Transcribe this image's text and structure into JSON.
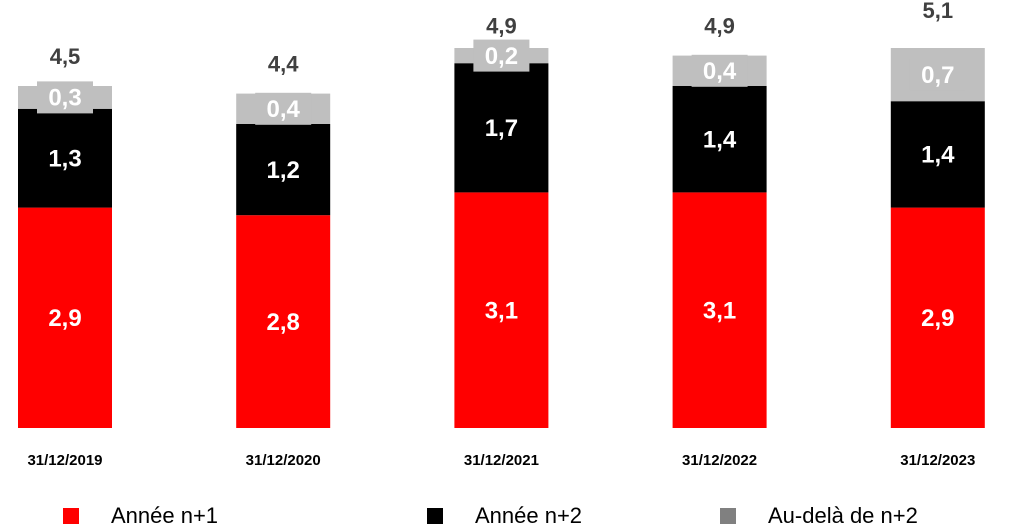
{
  "chart_data": {
    "type": "stacked_bar",
    "categories": [
      "31/12/2019",
      "31/12/2020",
      "31/12/2021",
      "31/12/2022",
      "31/12/2023"
    ],
    "series": [
      {
        "name": "Année n+1",
        "color": "#ff0000",
        "values": [
          2.9,
          2.8,
          3.1,
          3.1,
          2.9
        ],
        "value_labels": [
          "2,9",
          "2,8",
          "3,1",
          "3,1",
          "2,9"
        ]
      },
      {
        "name": "Année n+2",
        "color": "#000000",
        "values": [
          1.3,
          1.2,
          1.7,
          1.4,
          1.4
        ],
        "value_labels": [
          "1,3",
          "1,2",
          "1,7",
          "1,4",
          "1,4"
        ]
      },
      {
        "name": "Au-delà de n+2",
        "color": "#bfbfbf",
        "values": [
          0.3,
          0.4,
          0.2,
          0.4,
          0.7
        ],
        "value_labels": [
          "0,3",
          "0,4",
          "0,2",
          "0,4",
          "0,7"
        ]
      }
    ],
    "totals": [
      4.5,
      4.4,
      4.9,
      4.9,
      5.1
    ],
    "total_labels": [
      "4,5",
      "4,4",
      "4,9",
      "4,9",
      "5,1"
    ]
  }
}
